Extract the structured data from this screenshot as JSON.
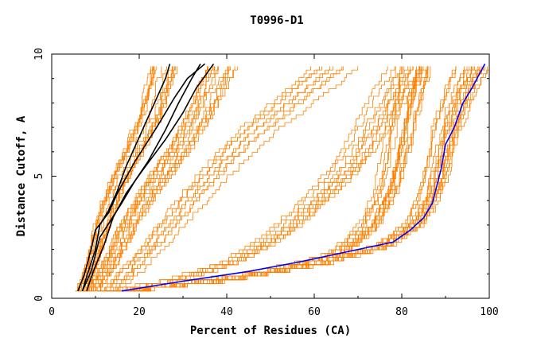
{
  "chart_data": {
    "type": "line",
    "title": "T0996-D1",
    "xlabel": "Percent of Residues (CA)",
    "ylabel": "Distance Cutoff, A",
    "xlim": [
      0,
      100
    ],
    "ylim": [
      0,
      10
    ],
    "xticks": [
      {
        "value": 0,
        "label": "0"
      },
      {
        "value": 20,
        "label": "20"
      },
      {
        "value": 40,
        "label": "40"
      },
      {
        "value": 60,
        "label": "60"
      },
      {
        "value": 80,
        "label": "80"
      },
      {
        "value": 100,
        "label": "100"
      }
    ],
    "yticks": [
      {
        "value": 0,
        "label": "0"
      },
      {
        "value": 5,
        "label": "5"
      },
      {
        "value": 10,
        "label": "10"
      }
    ],
    "grid": false,
    "colors": {
      "models": "#ff8000",
      "highlight_black": "#000000",
      "highlight_blue": "#0000ff"
    },
    "background_groups": [
      {
        "color": "#ff8000",
        "count": 14,
        "points": [
          [
            6.5,
            0.3
          ],
          [
            9,
            1.5
          ],
          [
            11,
            3
          ],
          [
            14,
            4.5
          ],
          [
            18,
            6
          ],
          [
            22,
            7.5
          ],
          [
            25,
            9.5
          ]
        ],
        "dx": [
          -2.5,
          5.5
        ]
      },
      {
        "color": "#ff8000",
        "count": 14,
        "points": [
          [
            9,
            0.3
          ],
          [
            13,
            1.5
          ],
          [
            17,
            3
          ],
          [
            22,
            4.5
          ],
          [
            28,
            6
          ],
          [
            33,
            7.5
          ],
          [
            38,
            9.5
          ]
        ],
        "dx": [
          -3,
          5
        ]
      },
      {
        "color": "#ff8000",
        "count": 8,
        "points": [
          [
            12,
            0.3
          ],
          [
            18,
            1.4
          ],
          [
            24,
            2.7
          ],
          [
            32,
            4.5
          ],
          [
            42,
            6.5
          ],
          [
            52,
            8
          ],
          [
            62,
            9.5
          ]
        ],
        "dx": [
          -4,
          8
        ]
      },
      {
        "color": "#ff8000",
        "count": 16,
        "points": [
          [
            14,
            0.3
          ],
          [
            30,
            0.7
          ],
          [
            50,
            1.2
          ],
          [
            65,
            1.9
          ],
          [
            72,
            3
          ],
          [
            76,
            4.5
          ],
          [
            78,
            6
          ],
          [
            80,
            8
          ],
          [
            82,
            9.5
          ]
        ],
        "dx": [
          -3,
          4
        ]
      },
      {
        "color": "#ff8000",
        "count": 18,
        "points": [
          [
            14,
            0.3
          ],
          [
            40,
            0.8
          ],
          [
            62,
            1.5
          ],
          [
            76,
            2.2
          ],
          [
            84,
            3.2
          ],
          [
            87,
            4.3
          ],
          [
            89,
            5.5
          ],
          [
            91,
            7
          ],
          [
            94,
            8.5
          ],
          [
            97,
            9.5
          ]
        ],
        "dx": [
          -4,
          3
        ]
      },
      {
        "color": "#ff8000",
        "count": 10,
        "points": [
          [
            12,
            0.3
          ],
          [
            28,
            0.8
          ],
          [
            42,
            1.6
          ],
          [
            52,
            2.7
          ],
          [
            60,
            4
          ],
          [
            68,
            5.5
          ],
          [
            73,
            7
          ],
          [
            78,
            8.5
          ],
          [
            82,
            9.5
          ]
        ],
        "dx": [
          -6,
          6
        ]
      }
    ],
    "series": [
      {
        "color": "#000000",
        "values": [
          [
            7,
            0.3
          ],
          [
            8,
            0.9
          ],
          [
            10,
            2
          ],
          [
            11,
            3
          ],
          [
            13,
            3.6
          ],
          [
            15,
            4.4
          ],
          [
            17,
            5.4
          ],
          [
            20,
            6.6
          ],
          [
            23,
            7.8
          ],
          [
            26,
            9
          ],
          [
            27,
            9.6
          ]
        ]
      },
      {
        "color": "#000000",
        "values": [
          [
            6,
            0.3
          ],
          [
            7.5,
            1
          ],
          [
            9,
            2
          ],
          [
            10,
            2.8
          ],
          [
            13,
            3.5
          ],
          [
            15,
            4.3
          ],
          [
            19,
            5.6
          ],
          [
            24,
            7.0
          ],
          [
            28,
            8.2
          ],
          [
            31,
            9
          ],
          [
            35,
            9.6
          ]
        ]
      },
      {
        "color": "#000000",
        "values": [
          [
            8,
            0.3
          ],
          [
            9.5,
            1.1
          ],
          [
            12,
            2.2
          ],
          [
            14,
            3.3
          ],
          [
            17,
            4.3
          ],
          [
            21,
            5.3
          ],
          [
            26,
            6.5
          ],
          [
            30,
            7.6
          ],
          [
            33,
            8.6
          ],
          [
            37,
            9.6
          ]
        ]
      },
      {
        "color": "#000000",
        "values": [
          [
            7,
            0.3
          ],
          [
            9,
            1.1
          ],
          [
            11,
            2.5
          ],
          [
            16,
            3.9
          ],
          [
            19,
            4.8
          ],
          [
            22,
            5.6
          ],
          [
            26,
            6.9
          ],
          [
            29,
            8
          ],
          [
            32,
            9
          ],
          [
            34,
            9.6
          ]
        ]
      },
      {
        "color": "#0000ff",
        "values": [
          [
            16,
            0.3
          ],
          [
            30,
            0.7
          ],
          [
            45,
            1.1
          ],
          [
            57,
            1.5
          ],
          [
            70,
            2
          ],
          [
            78,
            2.3
          ],
          [
            82,
            2.8
          ],
          [
            85,
            3.3
          ],
          [
            87,
            3.9
          ],
          [
            88,
            4.6
          ],
          [
            89,
            5.3
          ],
          [
            90,
            6.3
          ],
          [
            92,
            7
          ],
          [
            94,
            8
          ],
          [
            96,
            8.6
          ],
          [
            99,
            9.6
          ]
        ]
      }
    ]
  }
}
